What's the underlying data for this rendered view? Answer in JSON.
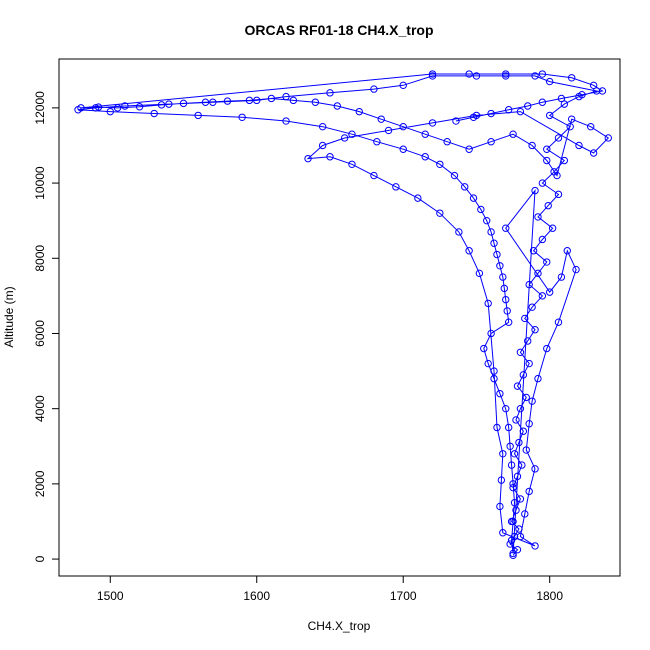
{
  "chart_data": {
    "type": "scatter",
    "title": "ORCAS RF01-18 CH4.X_trop",
    "xlabel": "CH4.X_trop",
    "ylabel": "Altitude (m)",
    "xlim": [
      1465,
      1848
    ],
    "ylim": [
      -450,
      13300
    ],
    "x_ticks": [
      1500,
      1600,
      1700,
      1800
    ],
    "y_ticks": [
      0,
      2000,
      4000,
      6000,
      8000,
      10000,
      12000
    ],
    "x_tick_labels": [
      "1500",
      "1600",
      "1700",
      "1800"
    ],
    "y_tick_labels": [
      "0",
      "2000",
      "4000",
      "6000",
      "8000",
      "10000",
      "12000"
    ],
    "marker": "open-circle",
    "lines_connect_points": true,
    "grid": false,
    "legend": "none",
    "color": "#0000ff",
    "series": [
      {
        "points": [
          [
            1775,
            100
          ],
          [
            1778,
            250
          ],
          [
            1773,
            400
          ],
          [
            1776,
            600
          ],
          [
            1779,
            800
          ],
          [
            1774,
            1000
          ],
          [
            1777,
            1300
          ],
          [
            1780,
            1600
          ],
          [
            1775,
            1900
          ],
          [
            1778,
            2200
          ],
          [
            1781,
            2500
          ],
          [
            1776,
            2800
          ],
          [
            1779,
            3100
          ],
          [
            1782,
            3400
          ],
          [
            1777,
            3700
          ],
          [
            1780,
            4000
          ],
          [
            1784,
            4300
          ],
          [
            1778,
            4600
          ],
          [
            1782,
            4900
          ],
          [
            1786,
            5200
          ],
          [
            1780,
            5500
          ],
          [
            1785,
            5800
          ],
          [
            1790,
            6100
          ],
          [
            1783,
            6400
          ],
          [
            1788,
            6700
          ],
          [
            1795,
            7000
          ],
          [
            1786,
            7300
          ],
          [
            1792,
            7600
          ],
          [
            1798,
            7900
          ],
          [
            1789,
            8200
          ],
          [
            1795,
            8500
          ],
          [
            1802,
            8800
          ],
          [
            1792,
            9100
          ],
          [
            1799,
            9400
          ],
          [
            1806,
            9700
          ],
          [
            1795,
            10000
          ],
          [
            1803,
            10300
          ],
          [
            1810,
            10600
          ],
          [
            1798,
            10900
          ],
          [
            1806,
            11200
          ],
          [
            1814,
            11500
          ],
          [
            1800,
            11800
          ],
          [
            1810,
            12100
          ],
          [
            1820,
            12300
          ],
          [
            1832,
            12450
          ],
          [
            1800,
            12700
          ],
          [
            1790,
            12850
          ],
          [
            1770,
            12850
          ],
          [
            1750,
            12850
          ],
          [
            1720,
            12850
          ],
          [
            1700,
            12600
          ],
          [
            1680,
            12500
          ],
          [
            1650,
            12400
          ],
          [
            1620,
            12300
          ],
          [
            1600,
            12200
          ],
          [
            1570,
            12150
          ],
          [
            1540,
            12100
          ],
          [
            1510,
            12050
          ],
          [
            1490,
            12000
          ],
          [
            1478,
            11950
          ],
          [
            1500,
            11900
          ],
          [
            1530,
            11850
          ],
          [
            1560,
            11800
          ],
          [
            1590,
            11750
          ],
          [
            1620,
            11650
          ],
          [
            1645,
            11500
          ],
          [
            1665,
            11300
          ],
          [
            1682,
            11100
          ],
          [
            1700,
            10900
          ],
          [
            1715,
            10700
          ],
          [
            1725,
            10500
          ],
          [
            1735,
            10200
          ],
          [
            1742,
            9900
          ],
          [
            1748,
            9600
          ],
          [
            1753,
            9300
          ],
          [
            1757,
            9000
          ],
          [
            1760,
            8700
          ],
          [
            1762,
            8400
          ],
          [
            1764,
            8100
          ],
          [
            1766,
            7800
          ],
          [
            1768,
            7500
          ],
          [
            1769,
            7200
          ],
          [
            1770,
            6900
          ],
          [
            1771,
            6600
          ],
          [
            1772,
            6300
          ],
          [
            1760,
            6000
          ],
          [
            1755,
            5600
          ],
          [
            1758,
            5200
          ],
          [
            1762,
            4800
          ],
          [
            1766,
            4400
          ],
          [
            1770,
            4000
          ],
          [
            1772,
            3500
          ],
          [
            1773,
            3000
          ],
          [
            1774,
            2500
          ],
          [
            1775,
            2000
          ],
          [
            1776,
            1500
          ],
          [
            1775,
            1000
          ],
          [
            1774,
            500
          ],
          [
            1775,
            150
          ],
          [
            1790,
            9800
          ],
          [
            1770,
            8800
          ],
          [
            1800,
            7100
          ],
          [
            1808,
            7500
          ],
          [
            1812,
            8200
          ],
          [
            1818,
            7700
          ],
          [
            1806,
            6300
          ],
          [
            1798,
            5600
          ],
          [
            1792,
            4800
          ],
          [
            1788,
            4200
          ],
          [
            1786,
            3600
          ],
          [
            1784,
            2900
          ],
          [
            1790,
            2400
          ],
          [
            1786,
            1800
          ],
          [
            1783,
            1200
          ],
          [
            1780,
            600
          ],
          [
            1790,
            350
          ],
          [
            1768,
            700
          ],
          [
            1766,
            1400
          ],
          [
            1767,
            2100
          ],
          [
            1768,
            2800
          ],
          [
            1764,
            3500
          ],
          [
            1762,
            5000
          ],
          [
            1758,
            6800
          ],
          [
            1752,
            7600
          ],
          [
            1745,
            8200
          ],
          [
            1738,
            8700
          ],
          [
            1725,
            9200
          ],
          [
            1710,
            9600
          ],
          [
            1695,
            9900
          ],
          [
            1680,
            10200
          ],
          [
            1665,
            10500
          ],
          [
            1650,
            10700
          ],
          [
            1635,
            10650
          ],
          [
            1645,
            11000
          ],
          [
            1660,
            11200
          ],
          [
            1690,
            11400
          ],
          [
            1720,
            11600
          ],
          [
            1750,
            11800
          ],
          [
            1780,
            11900
          ],
          [
            1820,
            11000
          ],
          [
            1830,
            10800
          ],
          [
            1840,
            11200
          ],
          [
            1828,
            11500
          ],
          [
            1815,
            11700
          ],
          [
            1805,
            10200
          ],
          [
            1798,
            10600
          ],
          [
            1788,
            11000
          ],
          [
            1775,
            11300
          ],
          [
            1760,
            11100
          ],
          [
            1745,
            10900
          ],
          [
            1730,
            11100
          ],
          [
            1715,
            11300
          ],
          [
            1700,
            11500
          ],
          [
            1685,
            11700
          ],
          [
            1670,
            11900
          ],
          [
            1655,
            12050
          ],
          [
            1640,
            12150
          ],
          [
            1625,
            12200
          ],
          [
            1610,
            12250
          ],
          [
            1595,
            12200
          ],
          [
            1580,
            12180
          ],
          [
            1565,
            12150
          ],
          [
            1550,
            12120
          ],
          [
            1535,
            12080
          ],
          [
            1520,
            12030
          ],
          [
            1505,
            12000
          ],
          [
            1492,
            12020
          ],
          [
            1480,
            12000
          ],
          [
            1720,
            12900
          ],
          [
            1745,
            12900
          ],
          [
            1770,
            12900
          ],
          [
            1795,
            12900
          ],
          [
            1815,
            12800
          ],
          [
            1830,
            12600
          ],
          [
            1836,
            12450
          ],
          [
            1822,
            12350
          ],
          [
            1808,
            12250
          ],
          [
            1795,
            12150
          ],
          [
            1785,
            12050
          ],
          [
            1772,
            11950
          ],
          [
            1760,
            11850
          ],
          [
            1748,
            11750
          ],
          [
            1736,
            11650
          ]
        ]
      }
    ]
  }
}
